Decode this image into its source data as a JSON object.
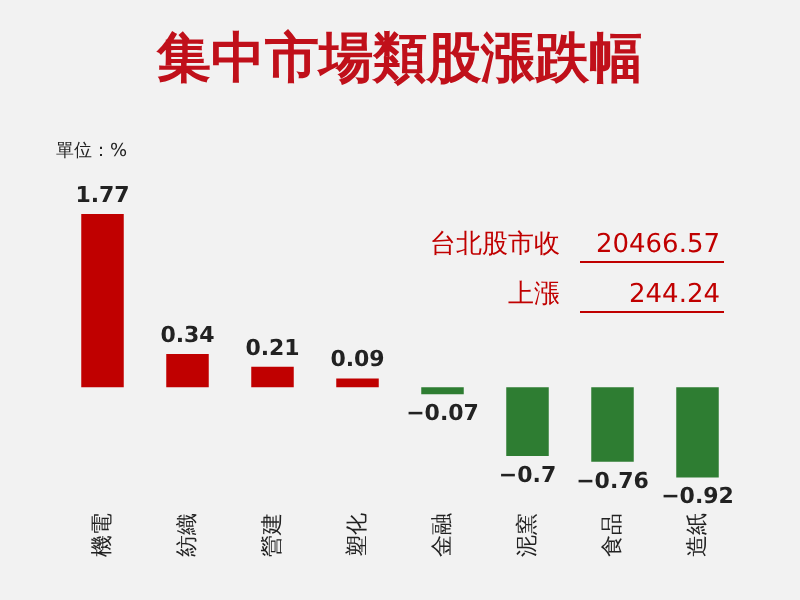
{
  "chart_data": {
    "type": "bar",
    "title": "集中市場類股漲跌幅",
    "annotations": [
      "單位：%",
      "台北股市收",
      "20466.57",
      "上漲",
      "244.24"
    ],
    "categories": [
      "機電",
      "紡織",
      "營建",
      "塑化",
      "金融",
      "泥窯",
      "食品",
      "造紙"
    ],
    "values": [
      1.77,
      0.34,
      0.21,
      0.09,
      -0.07,
      -0.7,
      -0.76,
      -0.92
    ],
    "colors": [
      "#c00000",
      "#c00000",
      "#c00000",
      "#c00000",
      "#2e7d32",
      "#2e7d32",
      "#2e7d32",
      "#2e7d32"
    ],
    "data_labels": true
  }
}
